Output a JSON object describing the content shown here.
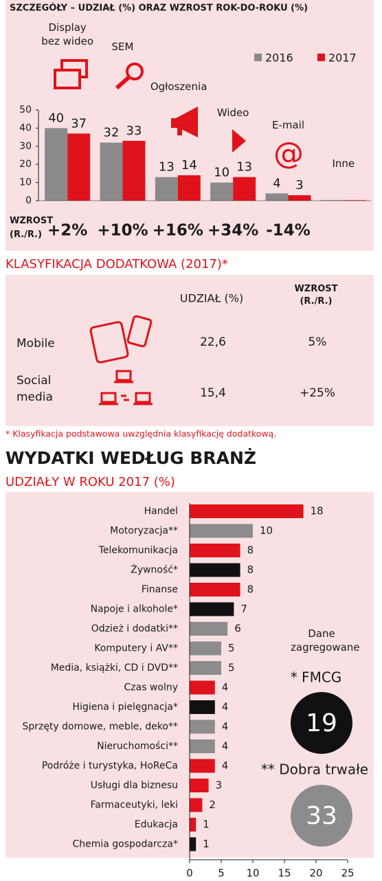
{
  "chart_data": [
    {
      "type": "bar",
      "title": "SZCZEGÓŁY – UDZIAŁ (%) ORAZ WZROST ROK-DO-ROKU (%)",
      "categories": [
        "Display bez wideo",
        "SEM",
        "Ogłoszenia",
        "Wideo",
        "E-mail",
        "Inne"
      ],
      "series": [
        {
          "name": "2016",
          "color": "#8a8a8a",
          "values": [
            40,
            32,
            13,
            10,
            4,
            0.3
          ],
          "value_labels": [
            "40",
            "32",
            "13",
            "10",
            "4",
            null
          ]
        },
        {
          "name": "2017",
          "color": "#e0121b",
          "values": [
            37,
            33,
            14,
            13,
            3,
            0.3
          ],
          "value_labels": [
            "37",
            "33",
            "14",
            "13",
            "3",
            null
          ]
        }
      ],
      "ylim": [
        0,
        50
      ],
      "yticks": [
        0,
        10,
        20,
        30,
        40,
        50
      ],
      "growth": {
        "label": "WZROST (R./R.)",
        "values": [
          "+2%",
          "+10%",
          "+16%",
          "+34%",
          "-14%"
        ]
      }
    },
    {
      "type": "barh",
      "categories": [
        "Handel",
        "Motoryzacja**",
        "Telekomunikacja",
        "Żywność*",
        "Finanse",
        "Napoje i alkohole*",
        "Odzież i dodatki**",
        "Komputery i AV**",
        "Media, książki, CD i DVD**",
        "Czas wolny",
        "Higiena i pielęgnacja*",
        "Sprzęty domowe, meble, deko**",
        "Nieruchomości**",
        "Podróże i turystyka, HoReCa",
        "Usługi dla biznesu",
        "Farmaceutyki, leki",
        "Edukacja",
        "Chemia gospodarcza*"
      ],
      "values": [
        18,
        10,
        8,
        8,
        8,
        7,
        6,
        5,
        5,
        4,
        4,
        4,
        4,
        4,
        3,
        2,
        1,
        1
      ],
      "colors": [
        "#e0121b",
        "#8c8c8c",
        "#e0121b",
        "#111111",
        "#e0121b",
        "#111111",
        "#8c8c8c",
        "#8c8c8c",
        "#8c8c8c",
        "#e0121b",
        "#111111",
        "#8c8c8c",
        "#8c8c8c",
        "#e0121b",
        "#e0121b",
        "#e0121b",
        "#e0121b",
        "#111111"
      ],
      "xlim": [
        0,
        25
      ],
      "xticks": [
        0,
        5,
        10,
        15,
        20,
        25
      ]
    }
  ],
  "classification": {
    "title": "KLASYFIKACJA DODATKOWA (2017)*",
    "headers": [
      "UDZIAŁ (%)",
      "WZROST (R./R.)"
    ],
    "rows": [
      [
        "Mobile",
        "22,6",
        "5%"
      ],
      [
        "Social media",
        "15,4",
        "+25%"
      ]
    ],
    "footnote": "* Klasyfikacja podstawowa uwzględnia klasyfikację dodatkową."
  },
  "industries": {
    "title": "WYDATKI WEDŁUG BRANŻ",
    "subtitle": "UDZIAŁY W ROKU 2017 (%)"
  },
  "aggregates": {
    "title": "Dane zagregowane",
    "fmcg_label": "* FMCG",
    "fmcg_value": "19",
    "durable_label": "** Dobra trwałe",
    "durable_value": "33"
  }
}
